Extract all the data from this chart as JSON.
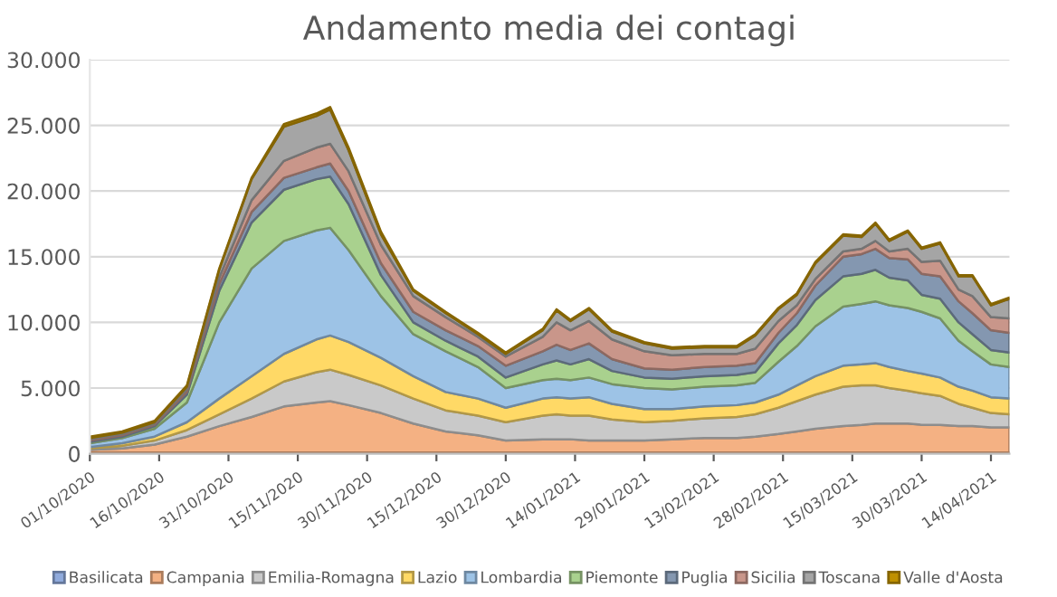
{
  "chart_data": {
    "type": "area",
    "stacked": true,
    "title": "Andamento media dei contagi",
    "x": [
      "2020-10-01",
      "2020-10-08",
      "2020-10-15",
      "2020-10-22",
      "2020-10-29",
      "2020-11-05",
      "2020-11-12",
      "2020-11-19",
      "2020-11-22",
      "2020-11-26",
      "2020-12-03",
      "2020-12-10",
      "2020-12-17",
      "2020-12-24",
      "2020-12-30",
      "2021-01-07",
      "2021-01-10",
      "2021-01-13",
      "2021-01-17",
      "2021-01-22",
      "2021-01-29",
      "2021-02-04",
      "2021-02-11",
      "2021-02-18",
      "2021-02-22",
      "2021-02-27",
      "2021-03-03",
      "2021-03-07",
      "2021-03-13",
      "2021-03-17",
      "2021-03-20",
      "2021-03-23",
      "2021-03-27",
      "2021-03-30",
      "2021-04-03",
      "2021-04-07",
      "2021-04-10",
      "2021-04-14",
      "2021-04-18"
    ],
    "series": [
      {
        "name": "Basilicata",
        "color": "#8faadc",
        "values": [
          100,
          100,
          100,
          100,
          100,
          100,
          100,
          100,
          100,
          100,
          100,
          100,
          100,
          100,
          100,
          100,
          100,
          100,
          100,
          100,
          100,
          100,
          100,
          100,
          100,
          100,
          100,
          100,
          100,
          100,
          100,
          100,
          100,
          100,
          100,
          100,
          100,
          100,
          100
        ]
      },
      {
        "name": "Campania",
        "color": "#f4b183",
        "values": [
          200,
          300,
          600,
          1200,
          2000,
          2700,
          3500,
          3800,
          3900,
          3600,
          3000,
          2200,
          1600,
          1300,
          900,
          1000,
          1000,
          1000,
          900,
          900,
          900,
          1000,
          1100,
          1100,
          1200,
          1400,
          1600,
          1800,
          2000,
          2100,
          2200,
          2200,
          2200,
          2100,
          2100,
          2000,
          2000,
          1900,
          1900
        ]
      },
      {
        "name": "Emilia-Romagna",
        "color": "#c9c9c9",
        "values": [
          100,
          200,
          300,
          500,
          900,
          1400,
          1900,
          2300,
          2400,
          2300,
          2100,
          1900,
          1600,
          1500,
          1400,
          1800,
          1900,
          1800,
          1900,
          1600,
          1400,
          1400,
          1500,
          1600,
          1700,
          2000,
          2300,
          2600,
          3000,
          3000,
          2900,
          2700,
          2500,
          2400,
          2200,
          1700,
          1400,
          1100,
          1000
        ]
      },
      {
        "name": "Lazio",
        "color": "#ffd966",
        "values": [
          100,
          200,
          300,
          600,
          1200,
          1700,
          2100,
          2500,
          2600,
          2500,
          2100,
          1700,
          1400,
          1300,
          1100,
          1300,
          1300,
          1300,
          1400,
          1200,
          1000,
          900,
          900,
          900,
          900,
          1000,
          1200,
          1400,
          1600,
          1600,
          1700,
          1600,
          1500,
          1500,
          1400,
          1300,
          1300,
          1200,
          1200
        ]
      },
      {
        "name": "Lombardia",
        "color": "#9dc3e6",
        "values": [
          300,
          400,
          600,
          1500,
          5800,
          8200,
          8600,
          8300,
          8200,
          7000,
          4700,
          3200,
          3100,
          2400,
          1500,
          1400,
          1400,
          1400,
          1500,
          1500,
          1600,
          1500,
          1500,
          1500,
          1500,
          2500,
          3000,
          3800,
          4500,
          4600,
          4700,
          4700,
          4800,
          4700,
          4500,
          3500,
          3000,
          2500,
          2400
        ]
      },
      {
        "name": "Piemonte",
        "color": "#a9d18e",
        "values": [
          100,
          100,
          200,
          600,
          2400,
          3500,
          3900,
          3900,
          3900,
          3500,
          1600,
          900,
          800,
          800,
          800,
          1200,
          1400,
          1200,
          1400,
          1000,
          800,
          800,
          800,
          800,
          800,
          1400,
          1600,
          2000,
          2300,
          2300,
          2400,
          2100,
          2100,
          1300,
          1500,
          1400,
          1300,
          1100,
          1100
        ]
      },
      {
        "name": "Puglia",
        "color": "#8497b0",
        "values": [
          100,
          100,
          100,
          200,
          500,
          800,
          900,
          900,
          1000,
          1000,
          900,
          800,
          800,
          800,
          900,
          1000,
          1200,
          1100,
          1200,
          900,
          700,
          700,
          700,
          700,
          700,
          800,
          900,
          1100,
          1500,
          1500,
          1600,
          1500,
          1600,
          1600,
          1700,
          1600,
          1600,
          1500,
          1500
        ]
      },
      {
        "name": "Sicilia",
        "color": "#c9968a",
        "values": [
          100,
          100,
          100,
          200,
          500,
          900,
          1300,
          1500,
          1500,
          1500,
          1400,
          1200,
          1000,
          700,
          700,
          1100,
          1700,
          1500,
          1700,
          1500,
          1300,
          1100,
          1000,
          900,
          1100,
          900,
          600,
          500,
          400,
          400,
          600,
          500,
          800,
          900,
          1200,
          900,
          1300,
          1000,
          1100
        ]
      },
      {
        "name": "Toscana",
        "color": "#a5a5a5",
        "values": [
          100,
          100,
          100,
          200,
          600,
          1600,
          2600,
          2400,
          2600,
          1600,
          800,
          400,
          300,
          200,
          200,
          500,
          900,
          700,
          900,
          600,
          600,
          500,
          500,
          500,
          1000,
          900,
          800,
          1200,
          1200,
          900,
          1300,
          800,
          1300,
          1000,
          1300,
          1000,
          1500,
          900,
          1500
        ]
      },
      {
        "name": "Valle d'Aosta",
        "color": "#bf9000",
        "values": [
          100,
          100,
          100,
          100,
          100,
          100,
          200,
          200,
          200,
          200,
          200,
          100,
          100,
          100,
          100,
          100,
          100,
          100,
          100,
          100,
          100,
          100,
          100,
          100,
          100,
          100,
          100,
          100,
          100,
          100,
          100,
          100,
          100,
          100,
          100,
          100,
          100,
          100,
          100
        ]
      }
    ],
    "xlim": [
      "2020-10-01",
      "2021-04-18"
    ],
    "xticks": [
      {
        "value": "2020-10-01",
        "label": "01/10/2020"
      },
      {
        "value": "2020-10-16",
        "label": "16/10/2020"
      },
      {
        "value": "2020-10-31",
        "label": "31/10/2020"
      },
      {
        "value": "2020-11-15",
        "label": "15/11/2020"
      },
      {
        "value": "2020-11-30",
        "label": "30/11/2020"
      },
      {
        "value": "2020-12-15",
        "label": "15/12/2020"
      },
      {
        "value": "2020-12-30",
        "label": "30/12/2020"
      },
      {
        "value": "2021-01-14",
        "label": "14/01/2021"
      },
      {
        "value": "2021-01-29",
        "label": "29/01/2021"
      },
      {
        "value": "2021-02-13",
        "label": "13/02/2021"
      },
      {
        "value": "2021-02-28",
        "label": "28/02/2021"
      },
      {
        "value": "2021-03-15",
        "label": "15/03/2021"
      },
      {
        "value": "2021-03-30",
        "label": "30/03/2021"
      },
      {
        "value": "2021-04-14",
        "label": "14/04/2021"
      }
    ],
    "ylim": [
      0,
      30000
    ],
    "yticks": [
      0,
      {
        "value": 5000,
        "label": "5.000"
      },
      {
        "value": 10000,
        "label": "10.000"
      },
      {
        "value": 15000,
        "label": "15.000"
      },
      {
        "value": 20000,
        "label": "20.000"
      },
      {
        "value": 25000,
        "label": "25.000"
      },
      {
        "value": 30000,
        "label": "30.000"
      }
    ],
    "grid": "y",
    "legend": "bottom",
    "marker": "none"
  }
}
